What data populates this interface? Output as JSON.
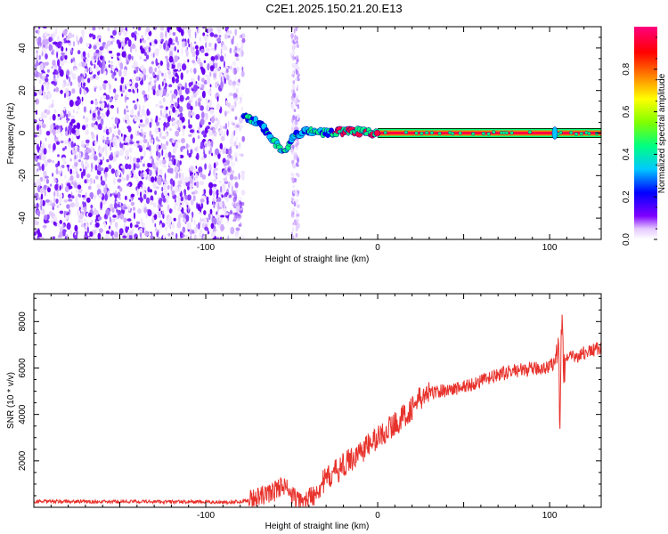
{
  "title": "C2E1.2025.150.21.20.E13",
  "chart_data": [
    {
      "type": "heatmap",
      "xlabel": "Height of straight line (km)",
      "ylabel": "Frequency (Hz)",
      "xlim": [
        -200,
        130
      ],
      "ylim": [
        -50,
        50
      ],
      "x_ticks": [
        -100,
        0,
        100
      ],
      "x_tick_labels": [
        "-100",
        "0",
        "100"
      ],
      "y_ticks": [
        40,
        20,
        0,
        -20,
        -40
      ],
      "y_tick_labels": [
        "40",
        "20",
        "0",
        "-20",
        "-40"
      ],
      "noise_region_x": [
        -200,
        -78
      ],
      "noise_band_x": [
        -50,
        -46
      ],
      "signal_line": [
        {
          "x": -78,
          "y": 8
        },
        {
          "x": -72,
          "y": 6
        },
        {
          "x": -66,
          "y": 2
        },
        {
          "x": -62,
          "y": -2
        },
        {
          "x": -58,
          "y": -6
        },
        {
          "x": -54,
          "y": -9
        },
        {
          "x": -48,
          "y": -1
        },
        {
          "x": -40,
          "y": 1
        },
        {
          "x": -30,
          "y": 0
        },
        {
          "x": -15,
          "y": 1
        },
        {
          "x": 0,
          "y": 0
        },
        {
          "x": 130,
          "y": 0
        }
      ],
      "grid": false,
      "colorbar": {
        "label": "Normalized spectral amplitude",
        "range": [
          0,
          1
        ],
        "ticks": [
          0.0,
          0.2,
          0.4,
          0.6,
          0.8
        ],
        "tick_labels": [
          "0.0",
          "0.2",
          "0.4",
          "0.6",
          "0.8"
        ],
        "colors": [
          "#ffffff",
          "#8000ff",
          "#0000ff",
          "#00c8ff",
          "#00ff80",
          "#80ff00",
          "#ffff00",
          "#ff8000",
          "#ff0000",
          "#ff0080"
        ]
      }
    },
    {
      "type": "line",
      "xlabel": "Height of straight line (km)",
      "ylabel": "SNR (10 * v/v)",
      "xlim": [
        -200,
        130
      ],
      "ylim": [
        0,
        9200
      ],
      "x_ticks": [
        -100,
        0,
        100
      ],
      "x_tick_labels": [
        "-100",
        "0",
        "100"
      ],
      "y_ticks": [
        2000,
        4000,
        6000,
        8000
      ],
      "y_tick_labels": [
        "2000",
        "4000",
        "6000",
        "8000"
      ],
      "grid": false,
      "color": "#e8322c",
      "series": [
        {
          "x": [
            -200,
            -180,
            -160,
            -140,
            -120,
            -100,
            -90,
            -80,
            -75,
            -70,
            -65,
            -60,
            -55,
            -50,
            -45,
            -40,
            -35,
            -30,
            -25,
            -20,
            -15,
            -10,
            -5,
            0,
            5,
            10,
            15,
            20,
            25,
            30,
            35,
            40,
            45,
            50,
            55,
            60,
            65,
            70,
            75,
            80,
            85,
            90,
            95,
            100,
            103,
            105,
            106,
            107,
            108,
            110,
            115,
            120,
            125,
            130
          ],
          "y": [
            250,
            250,
            240,
            250,
            240,
            230,
            220,
            240,
            300,
            400,
            550,
            700,
            1000,
            500,
            200,
            350,
            800,
            1200,
            1500,
            1800,
            2100,
            2400,
            2700,
            3000,
            3300,
            3600,
            3900,
            4300,
            4700,
            4900,
            5000,
            5050,
            5100,
            5200,
            5300,
            5450,
            5550,
            5700,
            5800,
            5900,
            5900,
            5950,
            6000,
            6050,
            6300,
            7200,
            3700,
            8200,
            6200,
            6400,
            6500,
            6650,
            6750,
            6900
          ]
        }
      ]
    }
  ]
}
